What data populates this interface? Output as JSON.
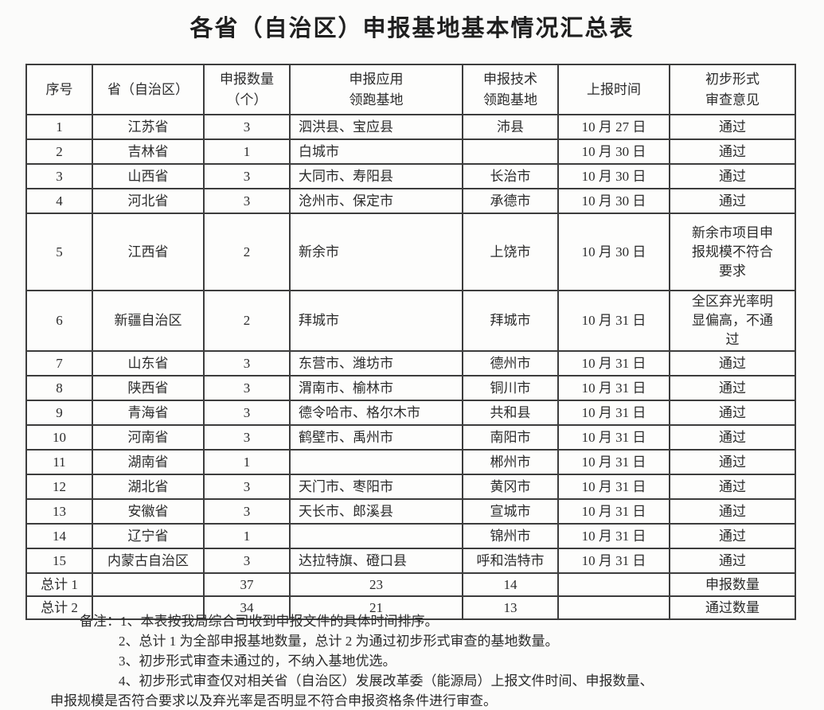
{
  "title": "各省（自治区）申报基地基本情况汇总表",
  "colors": {
    "paper": "#fbfbfa",
    "ink": "#2b2b2b",
    "border": "#3d3d3d"
  },
  "table": {
    "headers": [
      "序号",
      "省（自治区）",
      "申报数量\n（个）",
      "申报应用\n领跑基地",
      "申报技术\n领跑基地",
      "上报时间",
      "初步形式\n审查意见"
    ],
    "rows": [
      [
        "1",
        "江苏省",
        "3",
        "泗洪县、宝应县",
        "沛县",
        "10 月 27 日",
        "通过"
      ],
      [
        "2",
        "吉林省",
        "1",
        "白城市",
        "",
        "10 月 30 日",
        "通过"
      ],
      [
        "3",
        "山西省",
        "3",
        "大同市、寿阳县",
        "长治市",
        "10 月 30 日",
        "通过"
      ],
      [
        "4",
        "河北省",
        "3",
        "沧州市、保定市",
        "承德市",
        "10 月 30 日",
        "通过"
      ],
      [
        "5",
        "江西省",
        "2",
        "新余市",
        "上饶市",
        "10 月 30 日",
        "新余市项目申报规模不符合要求"
      ],
      [
        "6",
        "新疆自治区",
        "2",
        "拜城市",
        "拜城市",
        "10 月 31 日",
        "全区弃光率明显偏高，不通过"
      ],
      [
        "7",
        "山东省",
        "3",
        "东营市、潍坊市",
        "德州市",
        "10 月 31 日",
        "通过"
      ],
      [
        "8",
        "陕西省",
        "3",
        "渭南市、榆林市",
        "铜川市",
        "10 月 31 日",
        "通过"
      ],
      [
        "9",
        "青海省",
        "3",
        "德令哈市、格尔木市",
        "共和县",
        "10 月 31 日",
        "通过"
      ],
      [
        "10",
        "河南省",
        "3",
        "鹤壁市、禹州市",
        "南阳市",
        "10 月 31 日",
        "通过"
      ],
      [
        "11",
        "湖南省",
        "1",
        "",
        "郴州市",
        "10 月 31 日",
        "通过"
      ],
      [
        "12",
        "湖北省",
        "3",
        "天门市、枣阳市",
        "黄冈市",
        "10 月 31 日",
        "通过"
      ],
      [
        "13",
        "安徽省",
        "3",
        "天长市、郎溪县",
        "宣城市",
        "10 月 31 日",
        "通过"
      ],
      [
        "14",
        "辽宁省",
        "1",
        "",
        "锦州市",
        "10 月 31 日",
        "通过"
      ],
      [
        "15",
        "内蒙古自治区",
        "3",
        "达拉特旗、磴口县",
        "呼和浩特市",
        "10 月 31 日",
        "通过"
      ],
      [
        "总计 1",
        "",
        "37",
        "23",
        "14",
        "",
        "申报数量"
      ],
      [
        "总计 2",
        "",
        "34",
        "21",
        "13",
        "",
        "通过数量"
      ]
    ]
  },
  "notes": [
    "备注：1、本表按我局综合司收到申报文件的具体时间排序。",
    "2、总计 1 为全部申报基地数量，总计 2 为通过初步形式审查的基地数量。",
    "3、初步形式审查未通过的，不纳入基地优选。",
    "4、初步形式审查仅对相关省（自治区）发展改革委（能源局）上报文件时间、申报数量、",
    "申报规模是否符合要求以及弃光率是否明显不符合申报资格条件进行审查。"
  ]
}
